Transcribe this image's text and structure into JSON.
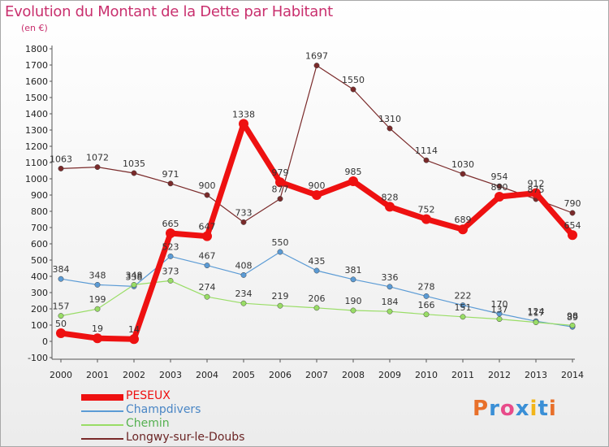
{
  "header": {
    "title": "Evolution du Montant de la Dette par Habitant",
    "subtitle": "(en €)"
  },
  "brand": {
    "letters": [
      "P",
      "r",
      "o",
      "x",
      "i",
      "t",
      "i"
    ],
    "colors": [
      "#e8702a",
      "#3a8fd6",
      "#e84b8a",
      "#3a8fd6",
      "#f2b51a",
      "#3a8fd6",
      "#e8702a"
    ]
  },
  "chart_data": {
    "type": "line",
    "title": "Evolution du Montant de la Dette par Habitant",
    "subtitle": "(en €)",
    "xlabel": "",
    "ylabel": "",
    "x": [
      "2000",
      "2001",
      "2002",
      "2003",
      "2004",
      "2005",
      "2006",
      "2007",
      "2008",
      "2009",
      "2010",
      "2011",
      "2012",
      "2013",
      "2014"
    ],
    "ylim": [
      -100,
      1800
    ],
    "yticks": [
      "-100",
      "0",
      "100",
      "200",
      "300",
      "400",
      "500",
      "600",
      "700",
      "800",
      "900",
      "1000",
      "1100",
      "1200",
      "1300",
      "1400",
      "1500",
      "1600",
      "1700",
      "1800"
    ],
    "grid": false,
    "legend_position": "bottom-left",
    "series": [
      {
        "name": "PESEUX",
        "color": "#ee1111",
        "values": [
          50,
          19,
          14,
          665,
          647,
          1338,
          979,
          900,
          985,
          828,
          752,
          689,
          890,
          912,
          654
        ],
        "labels": [
          "50",
          "19",
          "14",
          "665",
          "647",
          "1338",
          "979",
          "900",
          "985",
          "828",
          "752",
          "689",
          "890",
          "912",
          "654"
        ]
      },
      {
        "name": "Champdivers",
        "color": "#5b9bd5",
        "values": [
          384,
          348,
          338,
          523,
          467,
          408,
          550,
          435,
          381,
          336,
          278,
          222,
          170,
          124,
          89
        ],
        "labels": [
          "384",
          "348",
          "338",
          "523",
          "467",
          "408",
          "550",
          "435",
          "381",
          "336",
          "278",
          "222",
          "170",
          "124",
          "89"
        ]
      },
      {
        "name": "Chemin",
        "color": "#99dd66",
        "values": [
          157,
          199,
          348,
          373,
          274,
          234,
          219,
          206,
          190,
          184,
          166,
          151,
          137,
          117,
          98
        ],
        "labels": [
          "157",
          "199",
          "348",
          "373",
          "274",
          "234",
          "219",
          "206",
          "190",
          "184",
          "166",
          "151",
          "137",
          "117",
          "98"
        ]
      },
      {
        "name": "Longwy-sur-le-Doubs",
        "color": "#7a2a2a",
        "values": [
          1063,
          1072,
          1035,
          971,
          900,
          733,
          877,
          1697,
          1550,
          1310,
          1114,
          1030,
          954,
          875,
          790
        ],
        "labels": [
          "1063",
          "1072",
          "1035",
          "971",
          "900",
          "733",
          "877",
          "1697",
          "1550",
          "1310",
          "1114",
          "1030",
          "954",
          "875",
          "790"
        ]
      }
    ]
  }
}
